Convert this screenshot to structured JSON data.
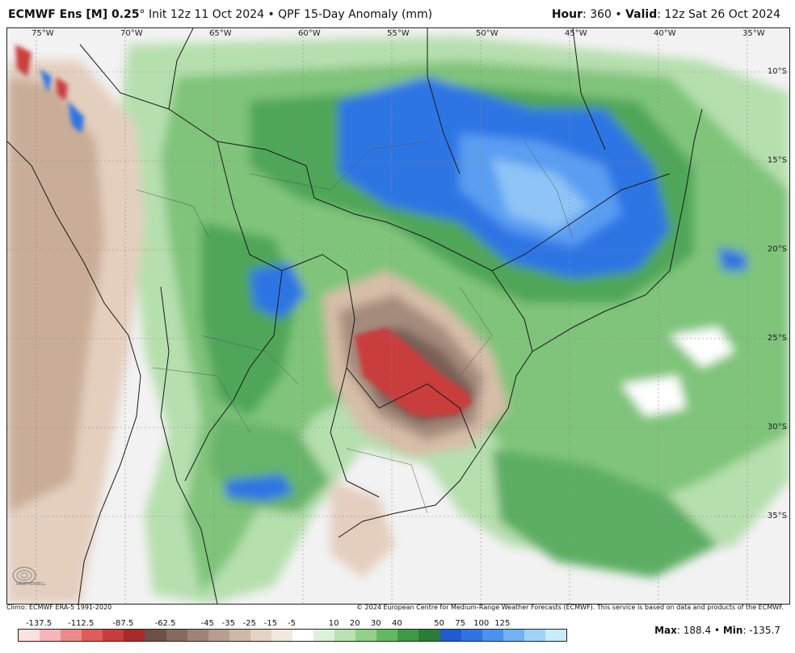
{
  "header": {
    "model": "ECMWF Ens [M] 0.25",
    "degree": "°",
    "init": "Init 12z 11 Oct 2024",
    "bullet": "•",
    "product": "QPF 15-Day Anomaly (mm)",
    "hour_label": "Hour",
    "hour_value": "360",
    "valid_label": "Valid",
    "valid_value": "12z Sat 26 Oct 2024"
  },
  "map": {
    "longitudes": [
      "75°W",
      "70°W",
      "65°W",
      "60°W",
      "55°W",
      "50°W",
      "45°W",
      "40°W",
      "35°W"
    ],
    "latitudes": [
      "10°S",
      "15°S",
      "20°S",
      "25°S",
      "30°S",
      "35°S"
    ],
    "logo_text": "WEATHERBELL"
  },
  "footer": {
    "climo": "Climo: ECMWF ERA-5 1991-2020",
    "copyright": "© 2024 European Centre for Medium-Range Weather Forecasts (ECMWF). This service is based on data and products of the ECMWF."
  },
  "colorbar": {
    "labels": [
      "-137.5",
      "-112.5",
      "-87.5",
      "-62.5",
      "-45",
      "-35",
      "-25",
      "-15",
      "-5",
      "10",
      "20",
      "30",
      "40",
      "50",
      "75",
      "100",
      "125"
    ],
    "colors": [
      "#fde0e0",
      "#f4b6b6",
      "#ec8a8a",
      "#de5c5c",
      "#c93c3c",
      "#a82a2a",
      "#6e5048",
      "#856a60",
      "#9e8478",
      "#b89e90",
      "#d0b8a8",
      "#e4d2c4",
      "#f2e8de",
      "#ffffff",
      "#ddf0d8",
      "#b8e2b0",
      "#90d088",
      "#64b862",
      "#3e9a44",
      "#2a7c36",
      "#1e5cd0",
      "#2e74e4",
      "#4a92f0",
      "#72b2f4",
      "#a0d2f8",
      "#c8ecfa"
    ]
  },
  "stats": {
    "max_label": "Max",
    "max_value": "188.4",
    "min_label": "Min",
    "min_value": "-135.7"
  }
}
